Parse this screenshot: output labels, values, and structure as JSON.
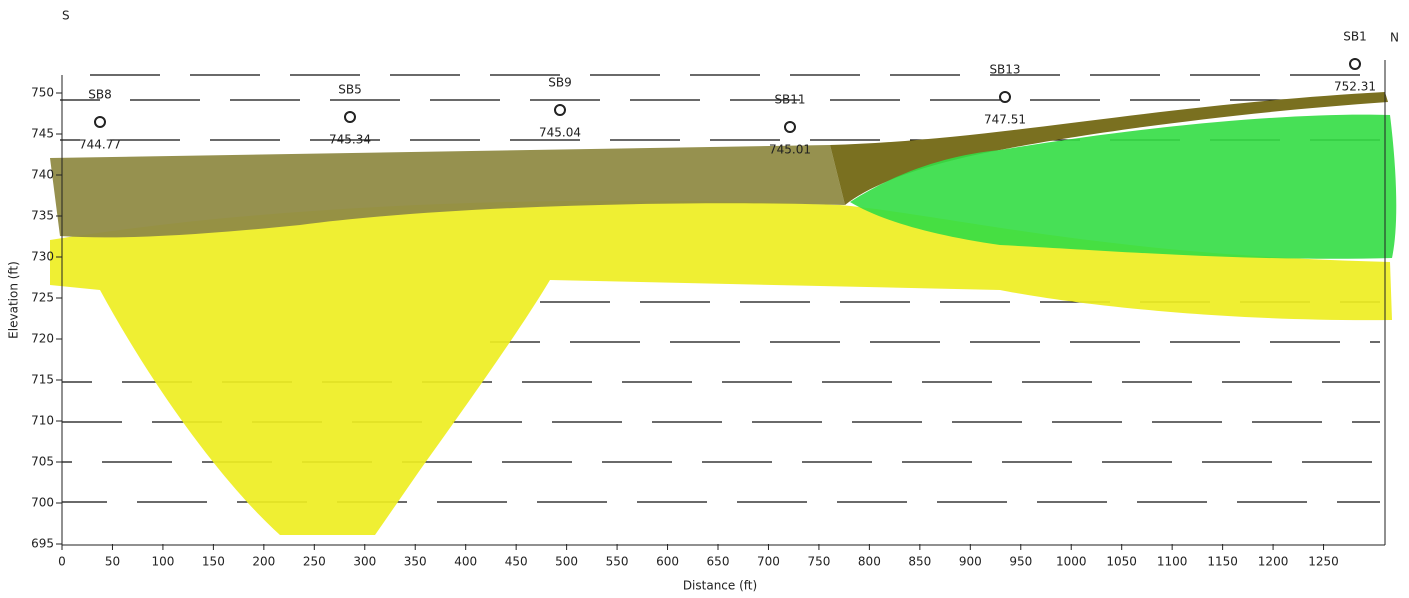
{
  "header": {
    "left_label": "S",
    "right_label": "N"
  },
  "axes": {
    "x_label": "Distance (ft)",
    "y_label": "Elevation (ft)",
    "xlim": [
      0,
      1300
    ],
    "ylim": [
      695,
      750
    ],
    "xticks": [
      0,
      50,
      100,
      150,
      200,
      250,
      300,
      350,
      400,
      450,
      500,
      550,
      600,
      650,
      700,
      750,
      800,
      850,
      900,
      950,
      1000,
      1050,
      1100,
      1150,
      1200,
      1250
    ],
    "yticks": [
      695,
      700,
      705,
      710,
      715,
      720,
      725,
      730,
      735,
      740,
      745,
      750
    ]
  },
  "borings": [
    {
      "name": "SB8",
      "elevation": "744.77"
    },
    {
      "name": "SB5",
      "elevation": "745.34"
    },
    {
      "name": "SB9",
      "elevation": "745.04"
    },
    {
      "name": "SB11",
      "elevation": "745.01"
    },
    {
      "name": "SB13",
      "elevation": "747.51"
    },
    {
      "name": "SB1",
      "elevation": "752.31"
    }
  ]
}
